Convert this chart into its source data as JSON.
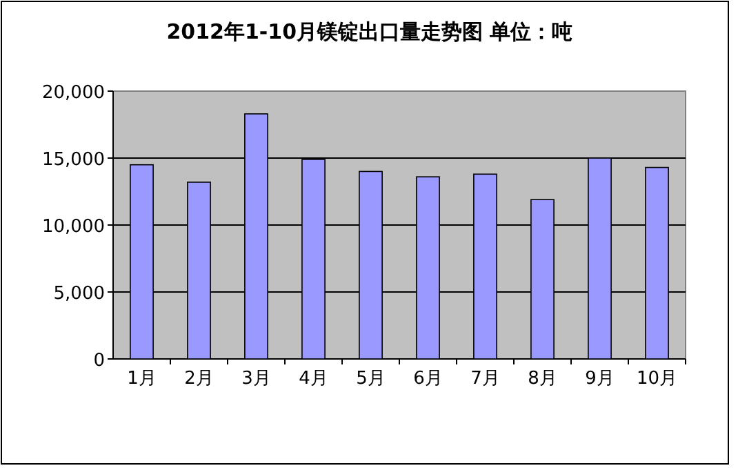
{
  "chart_data": {
    "type": "bar",
    "title": "2012年1-10月镁锭出口量走势图 单位：吨",
    "categories": [
      "1月",
      "2月",
      "3月",
      "4月",
      "5月",
      "6月",
      "7月",
      "8月",
      "9月",
      "10月"
    ],
    "series": [
      {
        "color": "#9999ff",
        "values": [
          14500,
          13200,
          18300,
          14900,
          14000,
          13600,
          13800,
          11900,
          15000,
          14300
        ]
      }
    ],
    "ylim": [
      0,
      20000
    ],
    "yticks": [
      0,
      {
        "value": 5000,
        "label": "5,000"
      },
      {
        "value": 10000,
        "label": "10,000"
      },
      {
        "value": 15000,
        "label": "15,000"
      },
      {
        "value": 20000,
        "label": "20,000"
      }
    ],
    "grid": "y"
  }
}
